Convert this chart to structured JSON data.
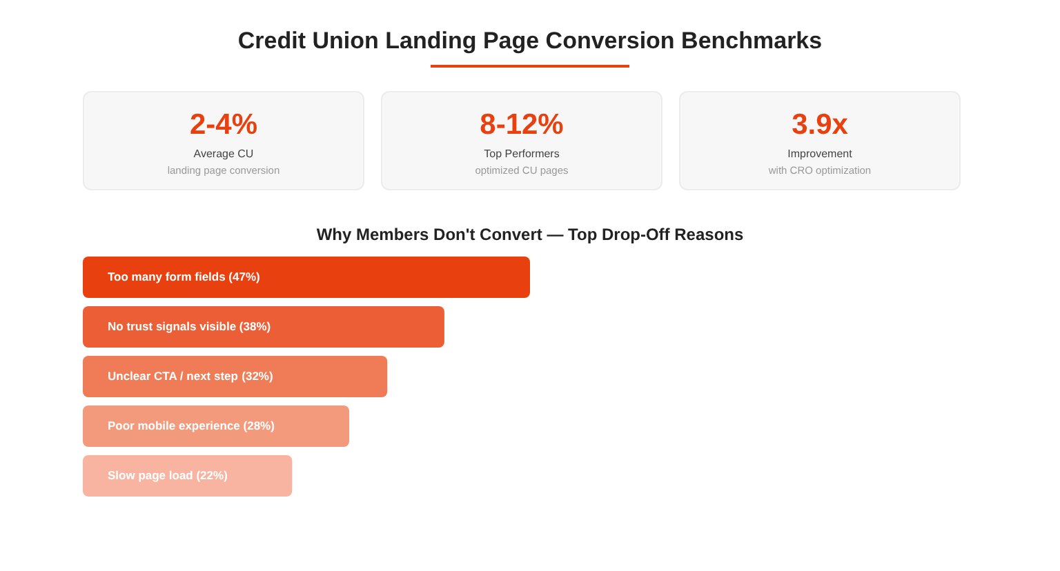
{
  "chart_data": [
    {
      "type": "other",
      "title": "Credit Union Landing Page Conversion Benchmarks",
      "annotations": [
        "2-4%",
        "Average CU",
        "landing page conversion",
        "8-12%",
        "Top Performers",
        "optimized CU pages",
        "3.9x",
        "Improvement",
        "with CRO optimization"
      ]
    },
    {
      "type": "bar",
      "orientation": "horizontal",
      "title": "Why Members Don't Convert — Top Drop-Off Reasons",
      "categories": [
        "Too many form fields",
        "No trust signals visible",
        "Unclear CTA / next step",
        "Poor mobile experience",
        "Slow page load"
      ],
      "values": [
        47,
        38,
        32,
        28,
        22
      ],
      "value_labels": [
        "(47%)",
        "(38%)",
        "(32%)",
        "(28%)",
        "(22%)"
      ],
      "colors": [
        "#e8410f",
        "#ec5f36",
        "#f07c57",
        "#f49a7c",
        "#f8b4a0"
      ]
    }
  ]
}
